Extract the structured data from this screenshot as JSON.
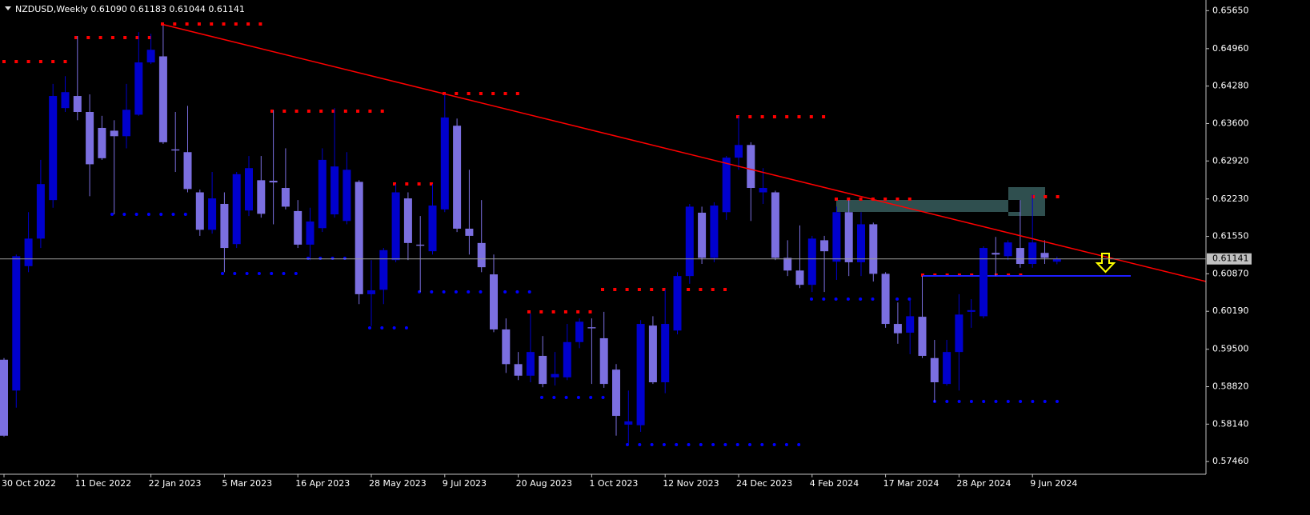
{
  "chart_data": {
    "type": "candlestick",
    "title": "NZDUSD,Weekly  0.61090 0.61183 0.61044 0.61141",
    "categories": [
      "30 Oct 2022",
      null,
      null,
      null,
      null,
      null,
      "11 Dec 2022",
      null,
      null,
      null,
      null,
      null,
      "22 Jan 2023",
      null,
      null,
      null,
      null,
      null,
      "5 Mar 2023",
      null,
      null,
      null,
      null,
      null,
      "16 Apr 2023",
      null,
      null,
      null,
      null,
      null,
      "28 May 2023",
      null,
      null,
      null,
      null,
      null,
      "9 Jul 2023",
      null,
      null,
      null,
      null,
      null,
      "20 Aug 2023",
      null,
      null,
      null,
      null,
      null,
      "1 Oct 2023",
      null,
      null,
      null,
      null,
      null,
      "12 Nov 2023",
      null,
      null,
      null,
      null,
      null,
      "24 Dec 2023",
      null,
      null,
      null,
      null,
      null,
      "4 Feb 2024",
      null,
      null,
      null,
      null,
      null,
      "17 Mar 2024",
      null,
      null,
      null,
      null,
      null,
      "28 Apr 2024",
      null,
      null,
      null,
      null,
      null,
      "9 Jun 2024",
      null,
      null
    ],
    "open": [
      0.5931,
      0.5875,
      0.6101,
      0.6151,
      0.6221,
      0.6388,
      0.641,
      0.6381,
      0.6352,
      0.6347,
      0.6337,
      0.6376,
      0.6471,
      0.6482,
      0.6313,
      0.6308,
      0.6235,
      0.6167,
      0.6214,
      0.6141,
      0.6202,
      0.6257,
      0.6256,
      0.6243,
      0.6201,
      0.614,
      0.617,
      0.6195,
      0.6183,
      0.6254,
      0.605,
      0.6058,
      0.6112,
      0.6224,
      0.614,
      0.6128,
      0.6204,
      0.6356,
      0.6169,
      0.6143,
      0.6086,
      0.5986,
      0.5923,
      0.5902,
      0.5938,
      0.5899,
      0.5899,
      0.5963,
      0.599,
      0.597,
      0.5913,
      0.5813,
      0.5812,
      0.5993,
      0.589,
      0.5984,
      0.6083,
      0.6198,
      0.6116,
      0.6199,
      0.6298,
      0.6321,
      0.6235,
      0.6235,
      0.6116,
      0.6093,
      0.6067,
      0.6148,
      0.6109,
      0.6199,
      0.6108,
      0.6177,
      0.6087,
      0.5996,
      0.598,
      0.6009,
      0.5934,
      0.5887,
      0.5945,
      0.6018,
      0.601,
      0.6125,
      0.6119,
      0.6134,
      0.6105,
      0.6125,
      0.6109
    ],
    "high": [
      0.5934,
      0.6122,
      0.6199,
      0.6294,
      0.6432,
      0.6446,
      0.6519,
      0.6413,
      0.6374,
      0.6366,
      0.6432,
      0.6526,
      0.6523,
      0.654,
      0.6381,
      0.6392,
      0.624,
      0.6272,
      0.6235,
      0.6272,
      0.6301,
      0.6301,
      0.6384,
      0.6315,
      0.6221,
      0.6207,
      0.6315,
      0.6388,
      0.6308,
      0.6257,
      0.6112,
      0.6134,
      0.625,
      0.6235,
      0.6192,
      0.625,
      0.6413,
      0.6369,
      0.6276,
      0.6221,
      0.6122,
      0.6006,
      0.5945,
      0.6015,
      0.5974,
      0.5945,
      0.5996,
      0.6006,
      0.6006,
      0.6018,
      0.5923,
      0.5875,
      0.6003,
      0.601,
      0.6058,
      0.609,
      0.6214,
      0.6209,
      0.6217,
      0.6301,
      0.6374,
      0.6326,
      0.6279,
      0.6238,
      0.6148,
      0.6175,
      0.6156,
      0.6156,
      0.6209,
      0.6221,
      0.6199,
      0.618,
      0.609,
      0.6035,
      0.6044,
      0.6083,
      0.5967,
      0.5967,
      0.605,
      0.6041,
      0.6137,
      0.6154,
      0.6148,
      0.6221,
      0.6231,
      0.6148,
      0.61183
    ],
    "low": [
      0.5791,
      0.5844,
      0.609,
      0.6134,
      0.6207,
      0.6381,
      0.6366,
      0.6228,
      0.6294,
      0.6195,
      0.6315,
      0.6374,
      0.6468,
      0.6323,
      0.6272,
      0.6235,
      0.6156,
      0.616,
      0.609,
      0.6134,
      0.6192,
      0.6189,
      0.6177,
      0.6204,
      0.6134,
      0.6112,
      0.6163,
      0.6189,
      0.6177,
      0.6032,
      0.5992,
      0.6032,
      0.6108,
      0.6112,
      0.6054,
      0.6122,
      0.6199,
      0.6163,
      0.6122,
      0.609,
      0.5981,
      0.5907,
      0.5894,
      0.589,
      0.5881,
      0.5884,
      0.5894,
      0.5952,
      0.5887,
      0.588,
      0.5793,
      0.5778,
      0.58,
      0.5887,
      0.587,
      0.5977,
      0.6069,
      0.6105,
      0.6108,
      0.6185,
      0.6276,
      0.6183,
      0.6214,
      0.6112,
      0.6083,
      0.6061,
      0.6054,
      0.6054,
      0.6076,
      0.6083,
      0.6083,
      0.6073,
      0.5989,
      0.596,
      0.5941,
      0.5934,
      0.5854,
      0.5884,
      0.5875,
      0.5989,
      0.6006,
      0.6083,
      0.6112,
      0.6098,
      0.6098,
      0.6105,
      0.61044
    ],
    "close": [
      0.5793,
      0.6119,
      0.6151,
      0.625,
      0.641,
      0.6417,
      0.6381,
      0.6286,
      0.6297,
      0.6337,
      0.6385,
      0.6471,
      0.6494,
      0.6326,
      0.6311,
      0.6241,
      0.6167,
      0.6224,
      0.6134,
      0.6268,
      0.6279,
      0.6196,
      0.6253,
      0.6209,
      0.614,
      0.6182,
      0.6294,
      0.6282,
      0.6276,
      0.605,
      0.6057,
      0.613,
      0.6235,
      0.6143,
      0.6138,
      0.6211,
      0.6371,
      0.6169,
      0.6156,
      0.6099,
      0.5986,
      0.5923,
      0.5902,
      0.5945,
      0.5887,
      0.5905,
      0.5963,
      0.6,
      0.5988,
      0.5887,
      0.5829,
      0.5819,
      0.5996,
      0.589,
      0.5996,
      0.6083,
      0.6209,
      0.6116,
      0.6211,
      0.6298,
      0.6321,
      0.6243,
      0.6243,
      0.6116,
      0.6093,
      0.6067,
      0.6151,
      0.6128,
      0.6199,
      0.6108,
      0.6177,
      0.6087,
      0.5996,
      0.5979,
      0.601,
      0.5938,
      0.589,
      0.5945,
      0.6013,
      0.6021,
      0.6134,
      0.6122,
      0.6144,
      0.6105,
      0.6144,
      0.6116,
      0.61141
    ],
    "up_color": "#0000cd",
    "down_color": "#7b6fe0",
    "ylim": [
      0.5723,
      0.658
    ],
    "yticks": [
      {
        "value": 0.6565,
        "label": "0.65650"
      },
      {
        "value": 0.6496,
        "label": "0.64960"
      },
      {
        "value": 0.6428,
        "label": "0.64280"
      },
      {
        "value": 0.636,
        "label": "0.63600"
      },
      {
        "value": 0.6292,
        "label": "0.62920"
      },
      {
        "value": 0.6223,
        "label": "0.62230"
      },
      {
        "value": 0.6155,
        "label": "0.61550"
      },
      {
        "value": 0.6087,
        "label": "0.60870"
      },
      {
        "value": 0.6019,
        "label": "0.60190"
      },
      {
        "value": 0.595,
        "label": "0.59500"
      },
      {
        "value": 0.5882,
        "label": "0.58820"
      },
      {
        "value": 0.5814,
        "label": "0.58140"
      },
      {
        "value": 0.5746,
        "label": "0.57460"
      }
    ],
    "grid": false
  }
}
